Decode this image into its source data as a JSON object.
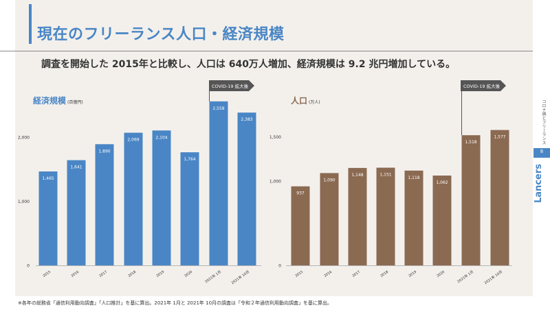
{
  "title": "現在のフリーランス人口・経済規模",
  "subtitle": "調査を開始した 2015年と比較し、人口は 640万人増加、経済規模は 9.2 兆円増加している。",
  "footnote": "※各年の総務省「通信利用動向調査」「人口推計」を基に算出。2021年 1月と 2021年 10月の調査は「令和２年通信利用動向調査」を基に算出。",
  "side": {
    "label": "コロナ禍とフリーランス",
    "page": "8",
    "logo": "Lancers"
  },
  "colors": {
    "accent": "#4a86c5",
    "economy_bar": "#4a86c5",
    "population_bar": "#8b6a52",
    "arrow": "#555555",
    "panel": "#f3f0ec"
  },
  "chart_data": [
    {
      "type": "bar",
      "title": "経済規模",
      "unit": "(百億円)",
      "categories": [
        "2015",
        "2016",
        "2017",
        "2018",
        "2019",
        "2020",
        "2021年 1月",
        "2021年 10月"
      ],
      "values": [
        1465,
        1641,
        1890,
        2069,
        2104,
        1764,
        2558,
        2383
      ],
      "value_labels": [
        "1,465",
        "1,641",
        "1,890",
        "2,069",
        "2,104",
        "1,764",
        "2,558",
        "2,383"
      ],
      "yticks": [
        0,
        1000,
        2000
      ],
      "ytick_labels": [
        "0",
        "1,000",
        "2,000"
      ],
      "ylim": [
        0,
        2800
      ],
      "grid": false,
      "annotation": {
        "text": "COVID-19 拡大後",
        "from_category_index": 6
      }
    },
    {
      "type": "bar",
      "title": "人口",
      "unit": "(万人)",
      "categories": [
        "2015",
        "2016",
        "2017",
        "2018",
        "2019",
        "2020",
        "2021年 1月",
        "2021年 10月"
      ],
      "values": [
        937,
        1090,
        1148,
        1151,
        1118,
        1062,
        1518,
        1577
      ],
      "value_labels": [
        "937",
        "1,090",
        "1,148",
        "1,151",
        "1,118",
        "1,062",
        "1,518",
        "1,577"
      ],
      "yticks": [
        0,
        1000,
        1500
      ],
      "ytick_labels": [
        "0",
        "1,000",
        "1,500"
      ],
      "ylim_visible_range": [
        0,
        1500
      ],
      "axis_break": true,
      "grid": false,
      "annotation": {
        "text": "COVID-19 拡大後",
        "from_category_index": 6
      }
    }
  ]
}
